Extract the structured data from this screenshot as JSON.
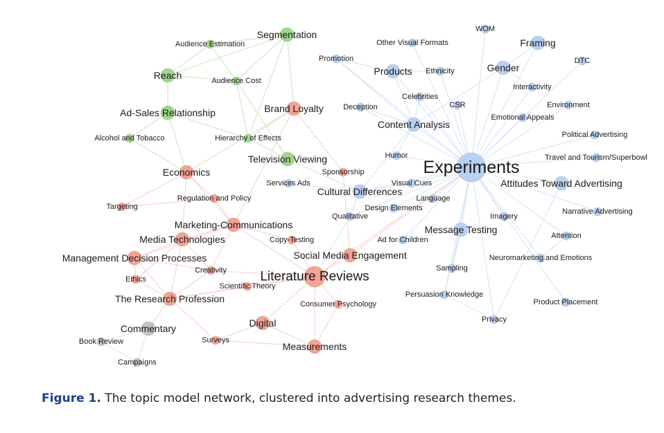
{
  "colors": {
    "green": "#9ed88a",
    "red": "#f4a394",
    "blue": "#b8d0f2",
    "gray": "#c4c4c4",
    "edge_green": "#c3e2b6",
    "edge_red": "#f6c8bf",
    "edge_blue": "#cfdff5",
    "caption_label": "#1f3f8f"
  },
  "caption": {
    "label": "Figure 1.",
    "text": "The topic model network, clustered into advertising research themes."
  },
  "nodes": [
    {
      "id": "segmentation",
      "label": "Segmentation",
      "cluster": "green",
      "size": "m"
    },
    {
      "id": "audience-estimation",
      "label": "Audience Estimation",
      "cluster": "green",
      "size": "s"
    },
    {
      "id": "reach",
      "label": "Reach",
      "cluster": "green",
      "size": "m"
    },
    {
      "id": "audience-cost",
      "label": "Audience Cost",
      "cluster": "green",
      "size": "s"
    },
    {
      "id": "ad-sales-relationship",
      "label": "Ad-Sales Relationship",
      "cluster": "green",
      "size": "m"
    },
    {
      "id": "alcohol-and-tobacco",
      "label": "Alcohol and Tobacco",
      "cluster": "green",
      "size": "s"
    },
    {
      "id": "hierarchy-of-effects",
      "label": "Hierarchy of Effects",
      "cluster": "green",
      "size": "s"
    },
    {
      "id": "television-viewing",
      "label": "Television Viewing",
      "cluster": "green",
      "size": "m"
    },
    {
      "id": "brand-loyalty",
      "label": "Brand Loyalty",
      "cluster": "red",
      "size": "m"
    },
    {
      "id": "economics",
      "label": "Economics",
      "cluster": "red",
      "size": "m"
    },
    {
      "id": "sponsorship",
      "label": "Sponsorship",
      "cluster": "red",
      "size": "s"
    },
    {
      "id": "targeting",
      "label": "Targeting",
      "cluster": "red",
      "size": "s"
    },
    {
      "id": "regulation-and-policy",
      "label": "Regulation and Policy",
      "cluster": "red",
      "size": "s"
    },
    {
      "id": "marketing-communications",
      "label": "Marketing-Communications",
      "cluster": "red",
      "size": "m"
    },
    {
      "id": "media-technologies",
      "label": "Media Technologies",
      "cluster": "red",
      "size": "m"
    },
    {
      "id": "copy-testing",
      "label": "Copy-Testing",
      "cluster": "red",
      "size": "s"
    },
    {
      "id": "social-media-engagement",
      "label": "Social Media Engagement",
      "cluster": "red",
      "size": "m"
    },
    {
      "id": "management-decision-processes",
      "label": "Management Decision Processes",
      "cluster": "red",
      "size": "m"
    },
    {
      "id": "creativity",
      "label": "Creativity",
      "cluster": "red",
      "size": "s"
    },
    {
      "id": "literature-reviews",
      "label": "Literature Reviews",
      "cluster": "red",
      "size": "l"
    },
    {
      "id": "ethics",
      "label": "Ethics",
      "cluster": "red",
      "size": "s"
    },
    {
      "id": "scientific-theory",
      "label": "Scientific Theory",
      "cluster": "red",
      "size": "s"
    },
    {
      "id": "the-research-profession",
      "label": "The Research Profession",
      "cluster": "red",
      "size": "m"
    },
    {
      "id": "consumer-psychology",
      "label": "Consumer Psychology",
      "cluster": "red",
      "size": "s"
    },
    {
      "id": "digital",
      "label": "Digital",
      "cluster": "red",
      "size": "m"
    },
    {
      "id": "surveys",
      "label": "Surveys",
      "cluster": "red",
      "size": "s"
    },
    {
      "id": "measurements",
      "label": "Measurements",
      "cluster": "red",
      "size": "m"
    },
    {
      "id": "commentary",
      "label": "Commentary",
      "cluster": "gray",
      "size": "m"
    },
    {
      "id": "book-review",
      "label": "Book Review",
      "cluster": "gray",
      "size": "s"
    },
    {
      "id": "campaigns",
      "label": "Campaigns",
      "cluster": "gray",
      "size": "s"
    },
    {
      "id": "wom",
      "label": "WOM",
      "cluster": "blue",
      "size": "s"
    },
    {
      "id": "other-visual-formats",
      "label": "Other Visual Formats",
      "cluster": "blue",
      "size": "s"
    },
    {
      "id": "framing",
      "label": "Framing",
      "cluster": "blue",
      "size": "m"
    },
    {
      "id": "promotion",
      "label": "Promotion",
      "cluster": "blue",
      "size": "s"
    },
    {
      "id": "products",
      "label": "Products",
      "cluster": "blue",
      "size": "m"
    },
    {
      "id": "ethnicity",
      "label": "Ethnicity",
      "cluster": "blue",
      "size": "s"
    },
    {
      "id": "gender",
      "label": "Gender",
      "cluster": "blue",
      "size": "m"
    },
    {
      "id": "dtc",
      "label": "DTC",
      "cluster": "blue",
      "size": "s"
    },
    {
      "id": "interactivity",
      "label": "Interactivity",
      "cluster": "blue",
      "size": "s"
    },
    {
      "id": "celebrities",
      "label": "Celebrities",
      "cluster": "blue",
      "size": "s"
    },
    {
      "id": "deception",
      "label": "Deception",
      "cluster": "blue",
      "size": "s"
    },
    {
      "id": "csr",
      "label": "CSR",
      "cluster": "blue",
      "size": "s"
    },
    {
      "id": "environment",
      "label": "Environment",
      "cluster": "blue",
      "size": "s"
    },
    {
      "id": "content-analysis",
      "label": "Content Analysis",
      "cluster": "blue",
      "size": "m"
    },
    {
      "id": "emotional-appeals",
      "label": "Emotional Appeals",
      "cluster": "blue",
      "size": "s"
    },
    {
      "id": "political-advertising",
      "label": "Political Advertising",
      "cluster": "blue",
      "size": "s"
    },
    {
      "id": "humor",
      "label": "Humor",
      "cluster": "blue",
      "size": "s"
    },
    {
      "id": "travel-and-tourism-superbowl",
      "label": "Travel and Tourism/Superbowl",
      "cluster": "blue",
      "size": "s"
    },
    {
      "id": "experiments",
      "label": "Experiments",
      "cluster": "blue",
      "size": "xl"
    },
    {
      "id": "services-ads",
      "label": "Services Ads",
      "cluster": "blue",
      "size": "s"
    },
    {
      "id": "visual-cues",
      "label": "Visual Cues",
      "cluster": "blue",
      "size": "s"
    },
    {
      "id": "cultural-differences",
      "label": "Cultural Differences",
      "cluster": "blue",
      "size": "m"
    },
    {
      "id": "attitudes-toward-advertising",
      "label": "Attitudes Toward Advertising",
      "cluster": "blue",
      "size": "m"
    },
    {
      "id": "language",
      "label": "Language",
      "cluster": "blue",
      "size": "s"
    },
    {
      "id": "design-elements",
      "label": "Design Elements",
      "cluster": "blue",
      "size": "s"
    },
    {
      "id": "qualitative",
      "label": "Qualitative",
      "cluster": "blue",
      "size": "s"
    },
    {
      "id": "imagery",
      "label": "Imagery",
      "cluster": "blue",
      "size": "s"
    },
    {
      "id": "narrative-advertising",
      "label": "Narrative Advertising",
      "cluster": "blue",
      "size": "s"
    },
    {
      "id": "message-testing",
      "label": "Message Testing",
      "cluster": "blue",
      "size": "m"
    },
    {
      "id": "ad-for-children",
      "label": "Ad for Children",
      "cluster": "blue",
      "size": "s"
    },
    {
      "id": "attention",
      "label": "Attention",
      "cluster": "blue",
      "size": "s"
    },
    {
      "id": "neuromarketing-and-emotions",
      "label": "Neuromarketing and Emotions",
      "cluster": "blue",
      "size": "s"
    },
    {
      "id": "sampling",
      "label": "Sampling",
      "cluster": "blue",
      "size": "s"
    },
    {
      "id": "persuasion-knowledge",
      "label": "Persuasion Knowledge",
      "cluster": "blue",
      "size": "s"
    },
    {
      "id": "product-placement",
      "label": "Product Placement",
      "cluster": "blue",
      "size": "s"
    },
    {
      "id": "privacy",
      "label": "Privacy",
      "cluster": "blue",
      "size": "s"
    }
  ],
  "edges": [
    [
      "segmentation",
      "audience-estimation"
    ],
    [
      "segmentation",
      "reach"
    ],
    [
      "segmentation",
      "audience-cost"
    ],
    [
      "segmentation",
      "hierarchy-of-effects"
    ],
    [
      "audience-estimation",
      "reach"
    ],
    [
      "audience-estimation",
      "audience-cost"
    ],
    [
      "reach",
      "ad-sales-relationship"
    ],
    [
      "reach",
      "audience-cost"
    ],
    [
      "audience-cost",
      "hierarchy-of-effects"
    ],
    [
      "audience-cost",
      "television-viewing"
    ],
    [
      "ad-sales-relationship",
      "alcohol-and-tobacco"
    ],
    [
      "ad-sales-relationship",
      "hierarchy-of-effects"
    ],
    [
      "ad-sales-relationship",
      "economics"
    ],
    [
      "hierarchy-of-effects",
      "television-viewing"
    ],
    [
      "hierarchy-of-effects",
      "brand-loyalty"
    ],
    [
      "television-viewing",
      "cultural-differences"
    ],
    [
      "segmentation",
      "brand-loyalty"
    ],
    [
      "alcohol-and-tobacco",
      "economics"
    ],
    [
      "brand-loyalty",
      "economics"
    ],
    [
      "brand-loyalty",
      "sponsorship"
    ],
    [
      "brand-loyalty",
      "marketing-communications"
    ],
    [
      "economics",
      "regulation-and-policy"
    ],
    [
      "economics",
      "targeting"
    ],
    [
      "economics",
      "marketing-communications"
    ],
    [
      "economics",
      "media-technologies"
    ],
    [
      "regulation-and-policy",
      "marketing-communications"
    ],
    [
      "marketing-communications",
      "media-technologies"
    ],
    [
      "marketing-communications",
      "literature-reviews"
    ],
    [
      "marketing-communications",
      "management-decision-processes"
    ],
    [
      "marketing-communications",
      "copy-testing"
    ],
    [
      "marketing-communications",
      "creativity"
    ],
    [
      "media-technologies",
      "management-decision-processes"
    ],
    [
      "media-technologies",
      "the-research-profession"
    ],
    [
      "media-technologies",
      "ethics"
    ],
    [
      "media-technologies",
      "creativity"
    ],
    [
      "management-decision-processes",
      "ethics"
    ],
    [
      "management-decision-processes",
      "the-research-profession"
    ],
    [
      "management-decision-processes",
      "creativity"
    ],
    [
      "creativity",
      "the-research-profession"
    ],
    [
      "creativity",
      "literature-reviews"
    ],
    [
      "ethics",
      "the-research-profession"
    ],
    [
      "literature-reviews",
      "scientific-theory"
    ],
    [
      "literature-reviews",
      "consumer-psychology"
    ],
    [
      "literature-reviews",
      "digital"
    ],
    [
      "literature-reviews",
      "measurements"
    ],
    [
      "literature-reviews",
      "social-media-engagement"
    ],
    [
      "literature-reviews",
      "copy-testing"
    ],
    [
      "literature-reviews",
      "the-research-profession"
    ],
    [
      "literature-reviews",
      "experiments"
    ],
    [
      "scientific-theory",
      "the-research-profession"
    ],
    [
      "the-research-profession",
      "commentary"
    ],
    [
      "the-research-profession",
      "surveys"
    ],
    [
      "digital",
      "surveys"
    ],
    [
      "digital",
      "measurements"
    ],
    [
      "measurements",
      "surveys"
    ],
    [
      "measurements",
      "consumer-psychology"
    ],
    [
      "targeting",
      "regulation-and-policy"
    ],
    [
      "sponsorship",
      "social-media-engagement"
    ],
    [
      "commentary",
      "book-review"
    ],
    [
      "commentary",
      "campaigns"
    ],
    [
      "book-review",
      "campaigns"
    ],
    [
      "experiments",
      "content-analysis"
    ],
    [
      "experiments",
      "cultural-differences"
    ],
    [
      "experiments",
      "attitudes-toward-advertising"
    ],
    [
      "experiments",
      "message-testing"
    ],
    [
      "experiments",
      "products"
    ],
    [
      "experiments",
      "framing"
    ],
    [
      "experiments",
      "gender"
    ],
    [
      "experiments",
      "wom"
    ],
    [
      "experiments",
      "dtc"
    ],
    [
      "experiments",
      "interactivity"
    ],
    [
      "experiments",
      "environment"
    ],
    [
      "experiments",
      "emotional-appeals"
    ],
    [
      "experiments",
      "political-advertising"
    ],
    [
      "experiments",
      "travel-and-tourism-superbowl"
    ],
    [
      "experiments",
      "narrative-advertising"
    ],
    [
      "experiments",
      "imagery"
    ],
    [
      "experiments",
      "attention"
    ],
    [
      "experiments",
      "neuromarketing-and-emotions"
    ],
    [
      "experiments",
      "product-placement"
    ],
    [
      "experiments",
      "persuasion-knowledge"
    ],
    [
      "experiments",
      "sampling"
    ],
    [
      "experiments",
      "privacy"
    ],
    [
      "experiments",
      "humor"
    ],
    [
      "experiments",
      "csr"
    ],
    [
      "experiments",
      "celebrities"
    ],
    [
      "experiments",
      "ethnicity"
    ],
    [
      "experiments",
      "other-visual-formats"
    ],
    [
      "experiments",
      "visual-cues"
    ],
    [
      "experiments",
      "language"
    ],
    [
      "experiments",
      "ad-for-children"
    ],
    [
      "experiments",
      "qualitative"
    ],
    [
      "experiments",
      "design-elements"
    ],
    [
      "experiments",
      "promotion"
    ],
    [
      "experiments",
      "deception"
    ],
    [
      "content-analysis",
      "products"
    ],
    [
      "content-analysis",
      "celebrities"
    ],
    [
      "content-analysis",
      "deception"
    ],
    [
      "content-analysis",
      "cultural-differences"
    ],
    [
      "content-analysis",
      "humor"
    ],
    [
      "content-analysis",
      "gender"
    ],
    [
      "content-analysis",
      "promotion"
    ],
    [
      "cultural-differences",
      "qualitative"
    ],
    [
      "cultural-differences",
      "services-ads"
    ],
    [
      "cultural-differences",
      "visual-cues"
    ],
    [
      "message-testing",
      "sampling"
    ],
    [
      "message-testing",
      "ad-for-children"
    ],
    [
      "message-testing",
      "persuasion-knowledge"
    ],
    [
      "neuromarketing-and-emotions",
      "attention"
    ],
    [
      "framing",
      "gender"
    ],
    [
      "gender",
      "interactivity"
    ],
    [
      "attitudes-toward-advertising",
      "privacy"
    ],
    [
      "products",
      "promotion"
    ],
    [
      "products",
      "ethnicity"
    ],
    [
      "qualitative",
      "literature-reviews"
    ],
    [
      "social-media-engagement",
      "experiments"
    ],
    [
      "persuasion-knowledge",
      "privacy"
    ]
  ]
}
